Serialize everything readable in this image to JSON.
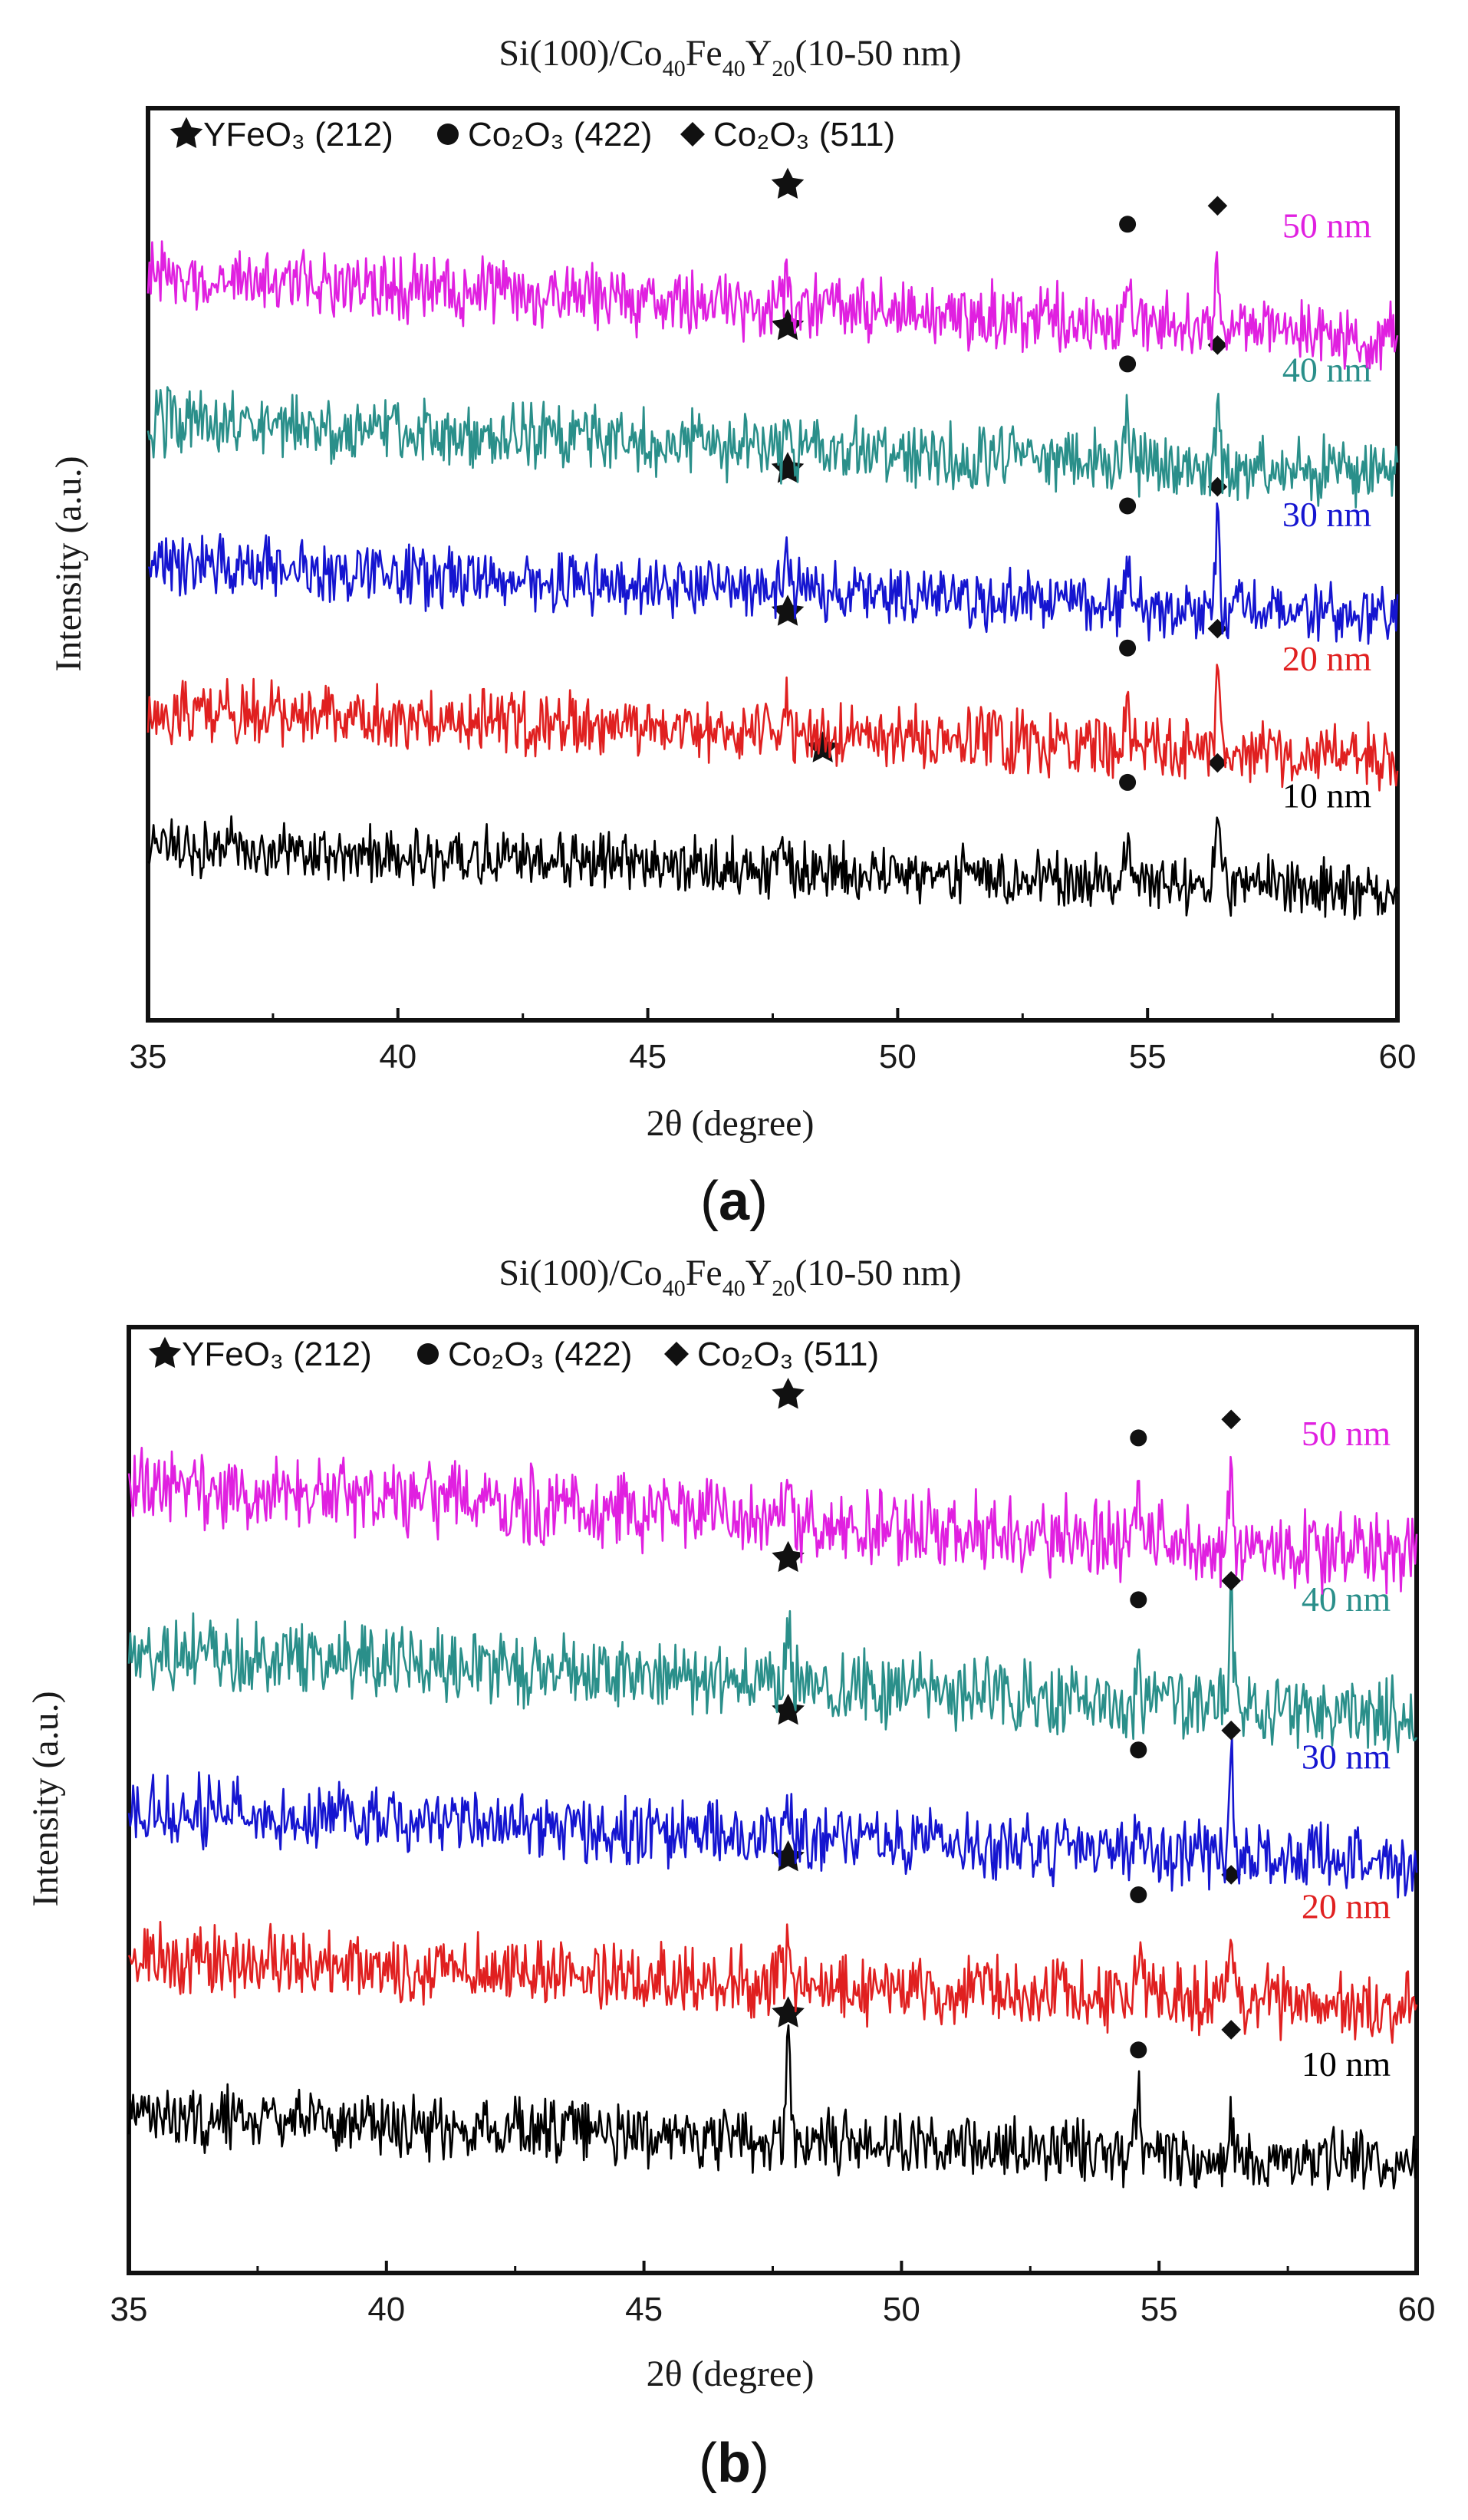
{
  "figure": {
    "panel_labels": [
      {
        "open": "(",
        "letter": "a",
        "close": ")"
      },
      {
        "open": "(",
        "letter": "b",
        "close": ")"
      }
    ]
  },
  "chart_data": [
    {
      "type": "line",
      "panel": "a",
      "title": "Si(100)/Co40Fe40Y20(10-50 nm)",
      "title_parts": {
        "pre": "Si(100)/Co",
        "s1": "40",
        "m1": "Fe",
        "s2": "40",
        "m2": "Y",
        "s3": "20",
        "post": "(10-50 nm)"
      },
      "xlabel": "2θ (degree)",
      "ylabel": "Intensity (a.u.)",
      "xlim": [
        35,
        60
      ],
      "ylim": [
        0,
        6
      ],
      "xticks": [
        "35",
        "40",
        "45",
        "50",
        "55",
        "60"
      ],
      "legend": [
        {
          "marker": "star",
          "label": "YFeO₃ (212)"
        },
        {
          "marker": "circle",
          "label": "Co₂O₃ (422)"
        },
        {
          "marker": "diamond",
          "label": "Co₂O₃ (511)"
        }
      ],
      "series": [
        {
          "name": "10 nm",
          "color": "#000000",
          "offset": 1.15,
          "slope": -0.3,
          "noise": 0.28,
          "peaks": [
            [
              47.8,
              0.12
            ],
            [
              54.6,
              0.25
            ],
            [
              56.4,
              0.55
            ]
          ],
          "star_x": 48.5
        },
        {
          "name": "20 nm",
          "color": "#e02020",
          "offset": 2.05,
          "slope": -0.32,
          "noise": 0.3,
          "peaks": [
            [
              47.8,
              0.25
            ],
            [
              54.6,
              0.3
            ],
            [
              56.4,
              0.6
            ]
          ],
          "star_x": 47.8
        },
        {
          "name": "30 nm",
          "color": "#1515d0",
          "offset": 3.0,
          "slope": -0.34,
          "noise": 0.3,
          "peaks": [
            [
              47.8,
              0.3
            ],
            [
              54.6,
              0.25
            ],
            [
              56.4,
              0.65
            ]
          ],
          "star_x": 47.8
        },
        {
          "name": "40 nm",
          "color": "#2a8f8a",
          "offset": 3.95,
          "slope": -0.36,
          "noise": 0.32,
          "peaks": [
            [
              47.8,
              0.25
            ],
            [
              54.6,
              0.35
            ],
            [
              56.4,
              0.4
            ]
          ],
          "star_x": 47.8
        },
        {
          "name": "50 nm",
          "color": "#e020e0",
          "offset": 4.9,
          "slope": -0.4,
          "noise": 0.32,
          "peaks": [
            [
              47.8,
              0.25
            ],
            [
              54.6,
              0.3
            ],
            [
              56.4,
              0.4
            ]
          ],
          "star_x": 47.8
        }
      ]
    },
    {
      "type": "line",
      "panel": "b",
      "title": "Si(100)/Co40Fe40Y20(10-50 nm)",
      "title_parts": {
        "pre": "Si(100)/Co",
        "s1": "40",
        "m1": "Fe",
        "s2": "40",
        "m2": "Y",
        "s3": "20",
        "post": "(10-50 nm)"
      },
      "xlabel": "2θ (degree)",
      "ylabel": "Intensity (a.u.)",
      "xlim": [
        35,
        60
      ],
      "ylim": [
        0,
        6
      ],
      "xticks": [
        "35",
        "40",
        "45",
        "50",
        "55",
        "60"
      ],
      "legend": [
        {
          "marker": "star",
          "label": "YFeO₃ (212)"
        },
        {
          "marker": "circle",
          "label": "Co₂O₃ (422)"
        },
        {
          "marker": "diamond",
          "label": "Co₂O₃ (511)"
        }
      ],
      "series": [
        {
          "name": "10 nm",
          "color": "#000000",
          "offset": 1.0,
          "slope": -0.3,
          "noise": 0.3,
          "peaks": [
            [
              47.8,
              0.6
            ],
            [
              54.6,
              0.3
            ],
            [
              56.4,
              0.3
            ]
          ],
          "star_x": 47.8
        },
        {
          "name": "20 nm",
          "color": "#e02020",
          "offset": 2.0,
          "slope": -0.32,
          "noise": 0.32,
          "peaks": [
            [
              47.8,
              0.35
            ],
            [
              54.6,
              0.3
            ],
            [
              56.4,
              0.55
            ]
          ],
          "star_x": 47.8
        },
        {
          "name": "30 nm",
          "color": "#1515d0",
          "offset": 2.95,
          "slope": -0.36,
          "noise": 0.32,
          "peaks": [
            [
              47.8,
              0.3
            ],
            [
              54.6,
              0.3
            ],
            [
              56.4,
              0.7
            ]
          ],
          "star_x": 47.8
        },
        {
          "name": "40 nm",
          "color": "#2a8f8a",
          "offset": 3.95,
          "slope": -0.42,
          "noise": 0.34,
          "peaks": [
            [
              47.8,
              0.4
            ],
            [
              54.6,
              0.25
            ],
            [
              56.4,
              0.6
            ]
          ],
          "star_x": 47.8
        },
        {
          "name": "50 nm",
          "color": "#e020e0",
          "offset": 5.0,
          "slope": -0.45,
          "noise": 0.36,
          "peaks": [
            [
              47.8,
              0.3
            ],
            [
              54.6,
              0.3
            ],
            [
              56.4,
              0.6
            ]
          ],
          "star_x": 47.8
        }
      ]
    }
  ]
}
